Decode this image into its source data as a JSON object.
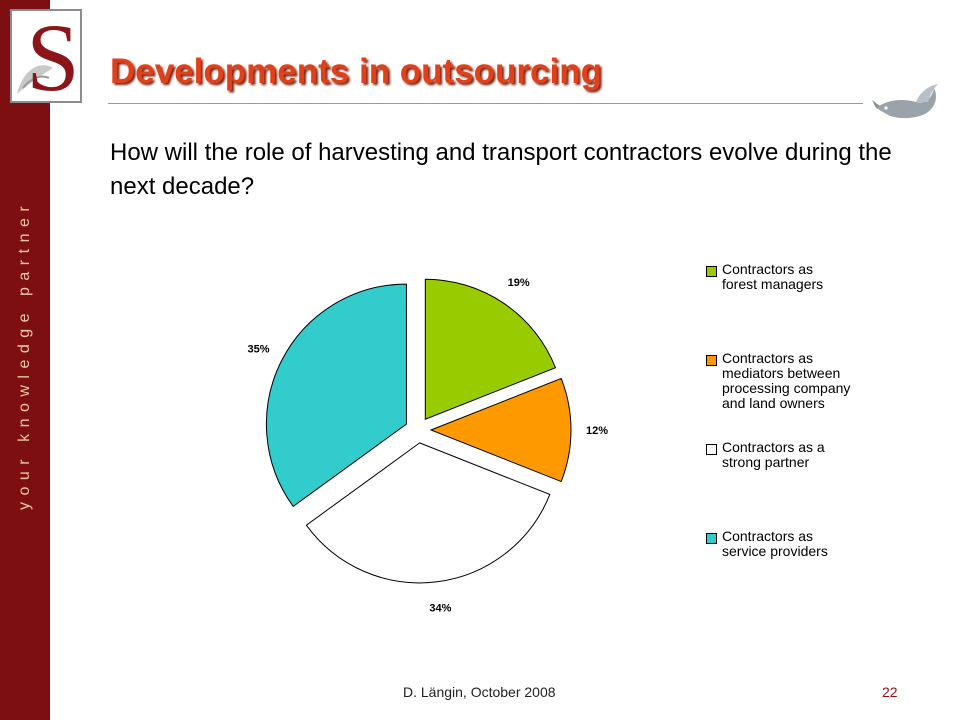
{
  "sidebar": {
    "tagline": "your knowledge partner"
  },
  "logo": {
    "letter": "S"
  },
  "header": {
    "title": "Developments in outsourcing"
  },
  "question": "How will the role of harvesting and transport contractors evolve during the next decade?",
  "footer": {
    "author_date": "D. Längin, October 2008",
    "page_number": "22"
  },
  "colors": {
    "sidebar": "#7d0f12",
    "title": "#e0401a",
    "forest_managers": "#99cc00",
    "mediators": "#ff9900",
    "strong_partner": "#ffffff",
    "service_providers": "#33cccc"
  },
  "chart_data": {
    "type": "pie",
    "exploded": true,
    "labels": [
      "Contractors as forest managers",
      "Contractors as mediators between processing company and land owners",
      "Contractors as a strong partner",
      "Contractors as service providers"
    ],
    "legend_lines": [
      "Contractors as\nforest managers",
      "Contractors as\nmediators between\nprocessing company\nand land owners",
      "Contractors as a\nstrong partner",
      "Contractors as\nservice providers"
    ],
    "values": [
      19,
      12,
      34,
      35
    ],
    "value_labels": [
      "19%",
      "12%",
      "34%",
      "35%"
    ],
    "colors": [
      "#99cc00",
      "#ff9900",
      "#ffffff",
      "#33cccc"
    ],
    "legend_position": "right"
  }
}
